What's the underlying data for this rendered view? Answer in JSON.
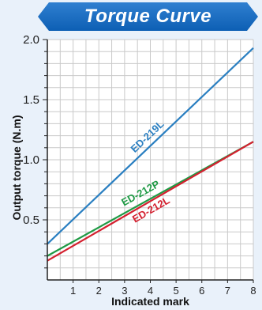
{
  "title": "Torque Curve",
  "colors": {
    "banner": "#1a6fc4",
    "plot_bg": "#ffffff",
    "grid": "#c9c9c9",
    "page_bg": "#e9f1fa"
  },
  "chart_data": {
    "type": "line",
    "title": "Torque Curve",
    "xlabel": "Indicated mark",
    "ylabel": "Output torque (N.m)",
    "xlim": [
      0,
      8
    ],
    "ylim": [
      0,
      2.0
    ],
    "x_ticks": [
      1,
      2,
      3,
      4,
      5,
      6,
      7,
      8
    ],
    "y_ticks": [
      {
        "value": 0.5,
        "label": "0.5"
      },
      {
        "value": 1.0,
        "label": "1.0"
      },
      {
        "value": 1.5,
        "label": "1.5"
      },
      {
        "value": 2.0,
        "label": "2.0"
      }
    ],
    "grid": true,
    "series": [
      {
        "name": "ED-219L",
        "color": "#2a7fc1",
        "x": [
          0,
          8
        ],
        "y": [
          0.3,
          1.93
        ]
      },
      {
        "name": "ED-212P",
        "color": "#1f9a45",
        "x": [
          0,
          8
        ],
        "y": [
          0.2,
          1.15
        ]
      },
      {
        "name": "ED-212L",
        "color": "#d4202f",
        "x": [
          0,
          8
        ],
        "y": [
          0.16,
          1.15
        ]
      }
    ]
  }
}
